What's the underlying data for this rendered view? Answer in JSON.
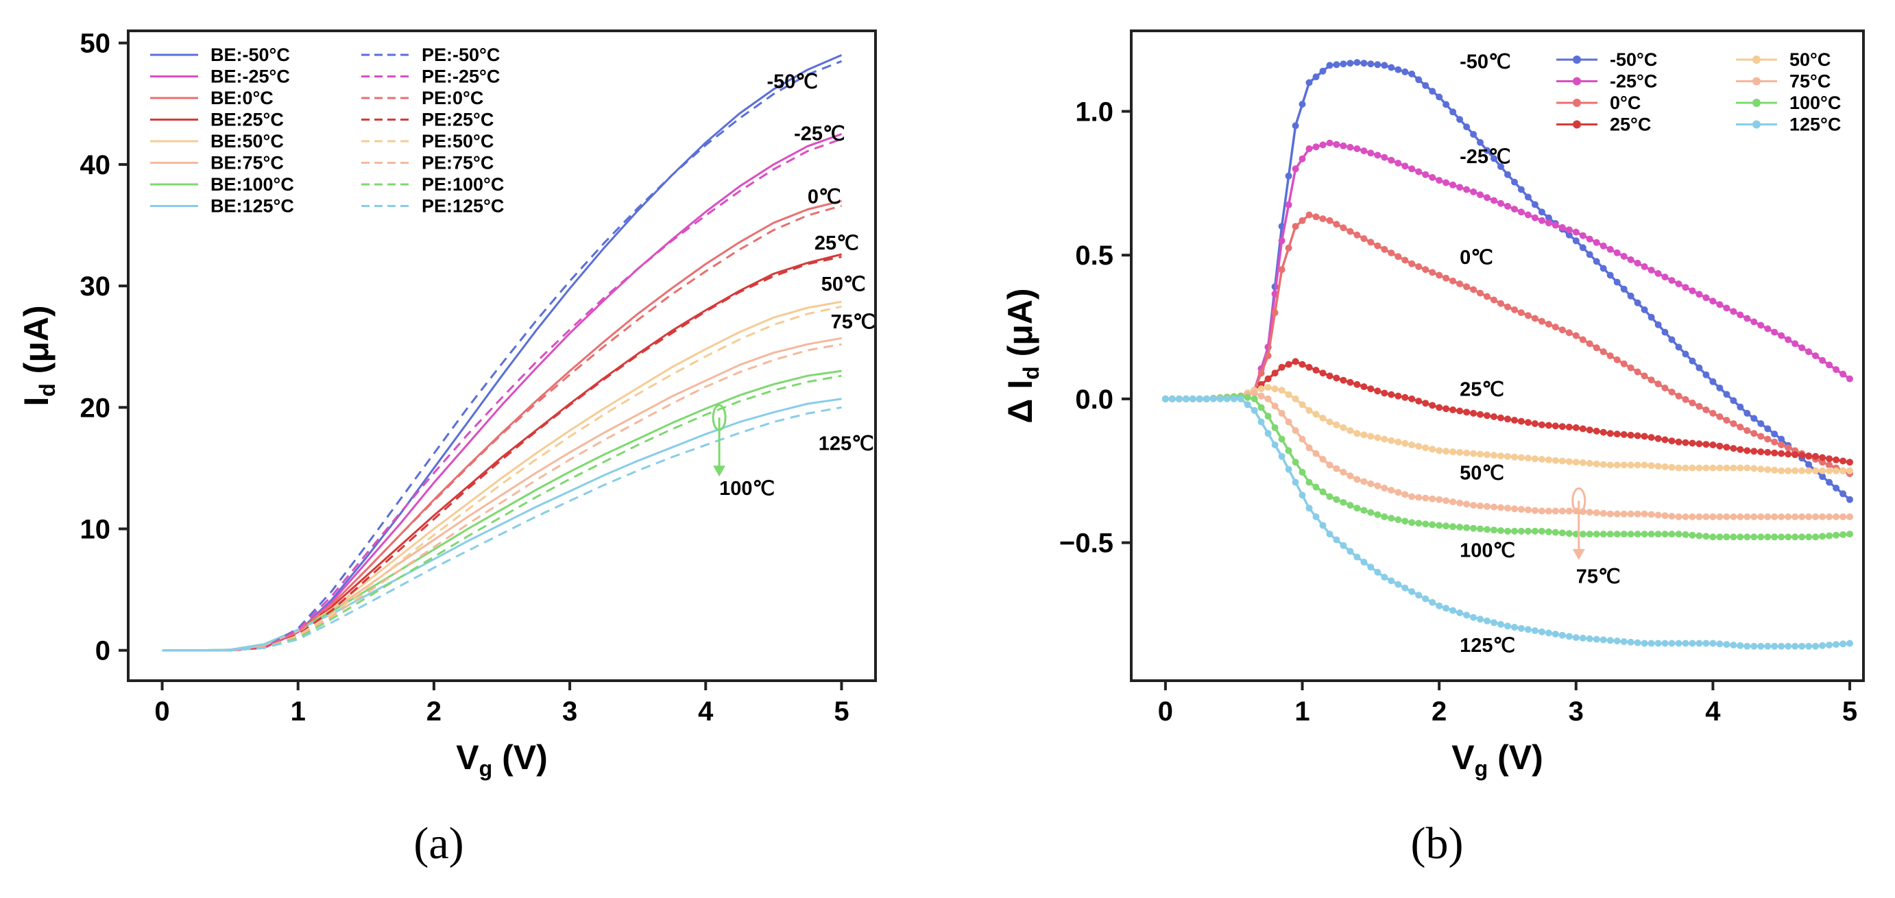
{
  "chart_data": [
    {
      "type": "line",
      "panel": "a",
      "caption": "(a)",
      "xlabel_main": "V",
      "xlabel_sub": "g",
      "xlabel_unit": " (V)",
      "ylabel_main": "I",
      "ylabel_sub": "d",
      "ylabel_unit": " (μA)",
      "xlim": [
        -0.25,
        5.25
      ],
      "ylim": [
        -2.5,
        51
      ],
      "xticks": [
        0,
        1,
        2,
        3,
        4,
        5
      ],
      "yticks": [
        0,
        10,
        20,
        30,
        40,
        50
      ],
      "x": [
        0,
        0.25,
        0.5,
        0.75,
        1.0,
        1.25,
        1.5,
        1.75,
        2.0,
        2.25,
        2.5,
        2.75,
        3.0,
        3.25,
        3.5,
        3.75,
        4.0,
        4.25,
        4.5,
        4.75,
        5.0
      ],
      "series": [
        {
          "name": "BE:-50°C",
          "style": "solid",
          "color": "#5a6fd8",
          "values": [
            0,
            0,
            0,
            0.2,
            1.5,
            4.2,
            7.6,
            11.2,
            15.0,
            18.8,
            22.6,
            26.3,
            29.8,
            33.1,
            36.2,
            39.1,
            41.8,
            44.2,
            46.2,
            47.8,
            49.0
          ]
        },
        {
          "name": "BE:-25°C",
          "style": "solid",
          "color": "#d94fc2",
          "values": [
            0,
            0,
            0,
            0.2,
            1.5,
            4.0,
            7.2,
            10.4,
            13.8,
            17.0,
            20.2,
            23.2,
            26.1,
            28.8,
            31.4,
            33.8,
            36.1,
            38.2,
            40.0,
            41.5,
            42.5
          ]
        },
        {
          "name": "BE:0°C",
          "style": "solid",
          "color": "#e87070",
          "values": [
            0,
            0,
            0,
            0.3,
            1.6,
            3.8,
            6.6,
            9.5,
            12.4,
            15.2,
            17.9,
            20.5,
            23.0,
            25.4,
            27.7,
            29.8,
            31.8,
            33.6,
            35.2,
            36.3,
            37.0
          ]
        },
        {
          "name": "BE:25°C",
          "style": "solid",
          "color": "#d63a3a",
          "values": [
            0,
            0,
            0,
            0.3,
            1.6,
            3.6,
            6.1,
            8.6,
            11.1,
            13.5,
            15.9,
            18.1,
            20.3,
            22.4,
            24.4,
            26.3,
            28.0,
            29.6,
            31.0,
            31.9,
            32.6
          ]
        },
        {
          "name": "BE:50°C",
          "style": "solid",
          "color": "#f5cc96",
          "values": [
            0,
            0,
            0,
            0.4,
            1.6,
            3.4,
            5.6,
            7.8,
            10.0,
            12.1,
            14.2,
            16.2,
            18.1,
            19.9,
            21.6,
            23.3,
            24.8,
            26.2,
            27.4,
            28.2,
            28.7
          ]
        },
        {
          "name": "BE:75°C",
          "style": "solid",
          "color": "#f5b89c",
          "values": [
            0,
            0,
            0,
            0.4,
            1.6,
            3.3,
            5.2,
            7.2,
            9.1,
            11.0,
            12.8,
            14.6,
            16.3,
            17.9,
            19.4,
            20.9,
            22.2,
            23.5,
            24.5,
            25.2,
            25.7
          ]
        },
        {
          "name": "BE:100°C",
          "style": "solid",
          "color": "#7ed870",
          "values": [
            0,
            0,
            0.05,
            0.5,
            1.7,
            3.2,
            4.9,
            6.6,
            8.3,
            10.0,
            11.6,
            13.2,
            14.7,
            16.1,
            17.4,
            18.7,
            19.9,
            21.0,
            21.9,
            22.6,
            23.0
          ]
        },
        {
          "name": "BE:125°C",
          "style": "solid",
          "color": "#88cde8",
          "values": [
            0,
            0,
            0.05,
            0.5,
            1.7,
            3.0,
            4.5,
            6.0,
            7.5,
            9.0,
            10.4,
            11.8,
            13.1,
            14.4,
            15.6,
            16.7,
            17.8,
            18.8,
            19.6,
            20.3,
            20.7
          ]
        },
        {
          "name": "PE:-50°C",
          "style": "dashed",
          "color": "#5a6fd8",
          "values": [
            0,
            0,
            0,
            0.2,
            1.8,
            4.9,
            8.6,
            12.4,
            16.2,
            20.0,
            23.6,
            27.1,
            30.4,
            33.5,
            36.4,
            39.1,
            41.6,
            43.8,
            45.8,
            47.4,
            48.5
          ]
        },
        {
          "name": "PE:-25°C",
          "style": "dashed",
          "color": "#d94fc2",
          "values": [
            0,
            0,
            0,
            0.2,
            1.7,
            4.5,
            7.9,
            11.3,
            14.6,
            17.8,
            20.8,
            23.7,
            26.4,
            29.0,
            31.4,
            33.7,
            35.8,
            37.8,
            39.6,
            41.1,
            42.1
          ]
        },
        {
          "name": "PE:0°C",
          "style": "dashed",
          "color": "#e87070",
          "values": [
            0,
            0,
            0,
            0.2,
            1.5,
            3.8,
            6.6,
            9.5,
            12.3,
            15.1,
            17.8,
            20.3,
            22.7,
            25.0,
            27.2,
            29.3,
            31.2,
            33.0,
            34.6,
            35.8,
            36.6
          ]
        },
        {
          "name": "PE:25°C",
          "style": "dashed",
          "color": "#d63a3a",
          "values": [
            0,
            0,
            0,
            0.2,
            1.3,
            3.3,
            5.8,
            8.3,
            10.8,
            13.3,
            15.7,
            18.0,
            20.2,
            22.3,
            24.3,
            26.1,
            27.9,
            29.5,
            30.8,
            31.8,
            32.4
          ]
        },
        {
          "name": "PE:50°C",
          "style": "dashed",
          "color": "#f5cc96",
          "values": [
            0,
            0,
            0,
            0.2,
            1.2,
            3.0,
            5.1,
            7.3,
            9.5,
            11.6,
            13.7,
            15.7,
            17.6,
            19.4,
            21.1,
            22.7,
            24.2,
            25.6,
            26.8,
            27.7,
            28.3
          ]
        },
        {
          "name": "PE:75°C",
          "style": "dashed",
          "color": "#f5b89c",
          "values": [
            0,
            0,
            0,
            0.2,
            1.1,
            2.8,
            4.7,
            6.6,
            8.5,
            10.4,
            12.2,
            14.0,
            15.7,
            17.3,
            18.8,
            20.3,
            21.7,
            22.9,
            23.9,
            24.7,
            25.2
          ]
        },
        {
          "name": "PE:100°C",
          "style": "dashed",
          "color": "#7ed870",
          "values": [
            0,
            0,
            0,
            0.2,
            1.0,
            2.6,
            4.3,
            6.0,
            7.7,
            9.4,
            11.0,
            12.6,
            14.1,
            15.5,
            16.9,
            18.2,
            19.4,
            20.5,
            21.4,
            22.1,
            22.6
          ]
        },
        {
          "name": "PE:125°C",
          "style": "dashed",
          "color": "#88cde8",
          "values": [
            0,
            0,
            0,
            0.2,
            0.9,
            2.3,
            3.8,
            5.3,
            6.8,
            8.2,
            9.6,
            11.0,
            12.3,
            13.6,
            14.8,
            15.9,
            16.9,
            17.9,
            18.8,
            19.5,
            20.0
          ]
        }
      ],
      "annotations": [
        {
          "text": "-50℃",
          "x": 4.45,
          "y": 46.3
        },
        {
          "text": "-25℃",
          "x": 4.65,
          "y": 42.0
        },
        {
          "text": "0℃",
          "x": 4.75,
          "y": 36.8
        },
        {
          "text": "25℃",
          "x": 4.8,
          "y": 33.0
        },
        {
          "text": "50℃",
          "x": 4.85,
          "y": 29.6
        },
        {
          "text": "75℃",
          "x": 4.92,
          "y": 26.5
        },
        {
          "text": "125℃",
          "x": 4.83,
          "y": 16.5
        },
        {
          "text": "100℃",
          "x": 4.1,
          "y": 12.8
        }
      ],
      "arrow": {
        "x": 4.1,
        "y_from": 19.5,
        "y_to": 14.3,
        "color": "#7ed870"
      }
    },
    {
      "type": "line",
      "panel": "b",
      "caption": "(b)",
      "xlabel_main": "V",
      "xlabel_sub": "g",
      "xlabel_unit": " (V)",
      "ylabel_main": "Δ I",
      "ylabel_sub": "d",
      "ylabel_unit": " (μA)",
      "xlim": [
        -0.25,
        5.1
      ],
      "ylim": [
        -0.98,
        1.28
      ],
      "xticks": [
        0,
        1,
        2,
        3,
        4,
        5
      ],
      "yticks": [
        -0.5,
        0.0,
        0.5,
        1.0
      ],
      "ytick_labels": [
        "−0.5",
        "0.0",
        "0.5",
        "1.0"
      ],
      "x": [
        0,
        0.3,
        0.55,
        0.65,
        0.75,
        0.85,
        0.95,
        1.05,
        1.2,
        1.4,
        1.6,
        1.8,
        2.0,
        2.25,
        2.5,
        2.75,
        3.0,
        3.25,
        3.5,
        3.75,
        4.0,
        4.25,
        4.5,
        4.75,
        5.0
      ],
      "series": [
        {
          "name": "-50°C",
          "color": "#5a6fd8",
          "values": [
            0,
            0,
            0.01,
            0.03,
            0.18,
            0.6,
            0.95,
            1.1,
            1.16,
            1.17,
            1.16,
            1.13,
            1.05,
            0.92,
            0.78,
            0.65,
            0.55,
            0.43,
            0.31,
            0.18,
            0.06,
            -0.05,
            -0.14,
            -0.25,
            -0.35
          ]
        },
        {
          "name": "-25°C",
          "color": "#d94fc2",
          "values": [
            0,
            0,
            0.01,
            0.03,
            0.18,
            0.55,
            0.8,
            0.87,
            0.89,
            0.87,
            0.84,
            0.8,
            0.76,
            0.72,
            0.67,
            0.62,
            0.58,
            0.52,
            0.46,
            0.4,
            0.34,
            0.28,
            0.22,
            0.15,
            0.07
          ]
        },
        {
          "name": "0°C",
          "color": "#e87070",
          "values": [
            0,
            0,
            0.01,
            0.03,
            0.15,
            0.45,
            0.6,
            0.64,
            0.62,
            0.57,
            0.52,
            0.47,
            0.43,
            0.38,
            0.32,
            0.27,
            0.22,
            0.15,
            0.08,
            0.01,
            -0.05,
            -0.11,
            -0.16,
            -0.21,
            -0.26
          ]
        },
        {
          "name": "25°C",
          "color": "#d63a3a",
          "values": [
            0,
            0,
            0.01,
            0.03,
            0.07,
            0.11,
            0.13,
            0.11,
            0.08,
            0.05,
            0.02,
            0.0,
            -0.03,
            -0.05,
            -0.07,
            -0.09,
            -0.1,
            -0.12,
            -0.13,
            -0.15,
            -0.16,
            -0.18,
            -0.19,
            -0.2,
            -0.22
          ]
        },
        {
          "name": "50°C",
          "color": "#f5cc96",
          "values": [
            0,
            0,
            0.01,
            0.03,
            0.04,
            0.03,
            0.0,
            -0.04,
            -0.08,
            -0.12,
            -0.14,
            -0.16,
            -0.18,
            -0.19,
            -0.2,
            -0.21,
            -0.22,
            -0.23,
            -0.23,
            -0.24,
            -0.24,
            -0.24,
            -0.25,
            -0.25,
            -0.25
          ]
        },
        {
          "name": "75°C",
          "color": "#f5b89c",
          "values": [
            0,
            0,
            0.01,
            0.02,
            0.0,
            -0.05,
            -0.11,
            -0.17,
            -0.23,
            -0.28,
            -0.31,
            -0.34,
            -0.35,
            -0.37,
            -0.38,
            -0.39,
            -0.39,
            -0.4,
            -0.4,
            -0.41,
            -0.41,
            -0.41,
            -0.41,
            -0.41,
            -0.41
          ]
        },
        {
          "name": "100°C",
          "color": "#7ed870",
          "values": [
            0,
            0,
            0.01,
            0.0,
            -0.06,
            -0.14,
            -0.22,
            -0.29,
            -0.34,
            -0.38,
            -0.41,
            -0.43,
            -0.44,
            -0.45,
            -0.46,
            -0.46,
            -0.47,
            -0.47,
            -0.47,
            -0.47,
            -0.48,
            -0.48,
            -0.48,
            -0.48,
            -0.47
          ]
        },
        {
          "name": "125°C",
          "color": "#88cde8",
          "values": [
            0,
            0,
            0.0,
            -0.04,
            -0.12,
            -0.2,
            -0.29,
            -0.38,
            -0.47,
            -0.55,
            -0.62,
            -0.67,
            -0.72,
            -0.76,
            -0.79,
            -0.81,
            -0.83,
            -0.84,
            -0.85,
            -0.85,
            -0.85,
            -0.86,
            -0.86,
            -0.86,
            -0.85
          ]
        }
      ],
      "annotations": [
        {
          "text": "-50℃",
          "x": 2.15,
          "y": 1.15
        },
        {
          "text": "-25℃",
          "x": 2.15,
          "y": 0.82
        },
        {
          "text": "0℃",
          "x": 2.15,
          "y": 0.47
        },
        {
          "text": "25℃",
          "x": 2.15,
          "y": 0.01
        },
        {
          "text": "50℃",
          "x": 2.15,
          "y": -0.28
        },
        {
          "text": "100℃",
          "x": 2.15,
          "y": -0.55
        },
        {
          "text": "75℃",
          "x": 3.0,
          "y": -0.64
        },
        {
          "text": "125℃",
          "x": 2.15,
          "y": -0.88
        }
      ],
      "arrow": {
        "x": 3.02,
        "y_from": -0.34,
        "y_to": -0.56,
        "color": "#f5b89c"
      }
    }
  ]
}
